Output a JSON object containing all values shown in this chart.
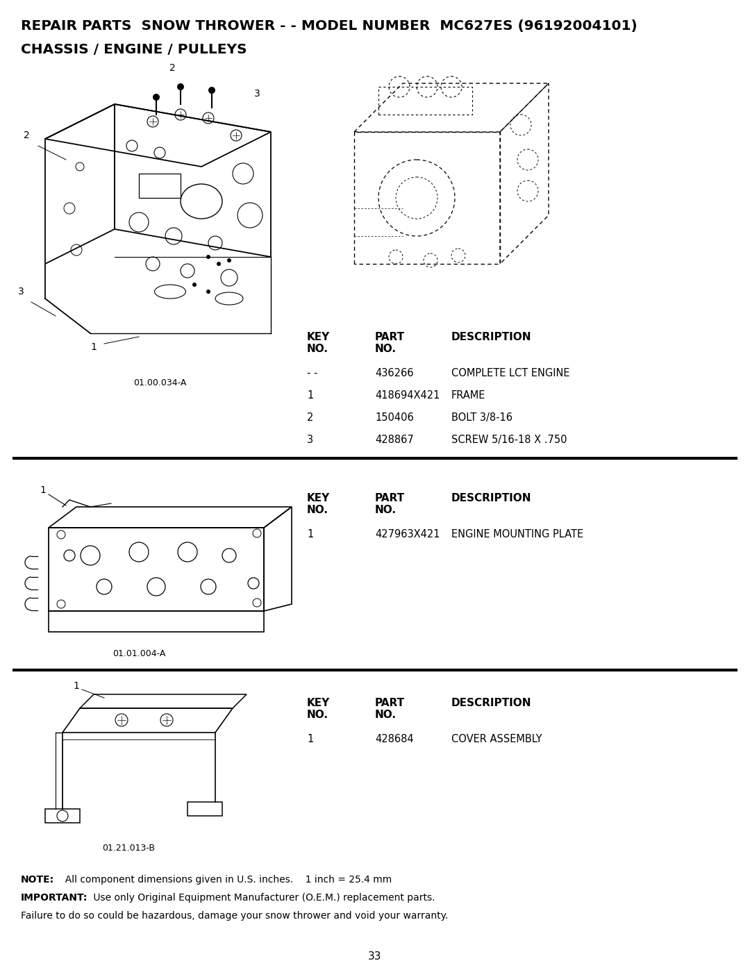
{
  "title_line1": "REPAIR PARTS  SNOW THROWER - - MODEL NUMBER  MC627ES (96192004101)",
  "title_line2": "CHASSIS / ENGINE / PULLEYS",
  "bg_color": "#ffffff",
  "text_color": "#000000",
  "section1": {
    "diagram_label": "01.00.034-A",
    "rows": [
      [
        "- -",
        "436266",
        "COMPLETE LCT ENGINE"
      ],
      [
        "1",
        "418694X421",
        "FRAME"
      ],
      [
        "2",
        "150406",
        "BOLT 3/8-16"
      ],
      [
        "3",
        "428867",
        "SCREW 5/16-18 X .750"
      ]
    ]
  },
  "section2": {
    "diagram_label": "01.01.004-A",
    "rows": [
      [
        "1",
        "427963X421",
        "ENGINE MOUNTING PLATE"
      ]
    ]
  },
  "section3": {
    "diagram_label": "01.21.013-B",
    "rows": [
      [
        "1",
        "428684",
        "COVER ASSEMBLY"
      ]
    ]
  },
  "note_bold1": "NOTE:",
  "note_text1": "  All component dimensions given in U.S. inches.    1 inch = 25.4 mm",
  "note_bold2": "IMPORTANT:",
  "note_text2": " Use only Original Equipment Manufacturer (O.E.M.) replacement parts.",
  "note_text3": "Failure to do so could be hazardous, damage your snow thrower and void your warranty.",
  "page_number": "33"
}
